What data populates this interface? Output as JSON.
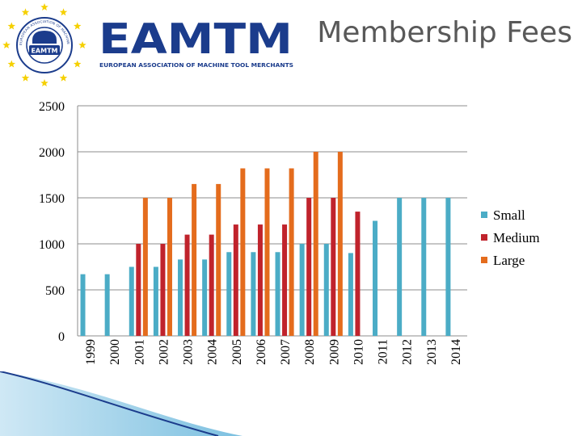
{
  "header": {
    "title": "Membership Fees",
    "logo_text": "EAMTM",
    "logo_subtitle": "EUROPEAN ASSOCIATION OF MACHINE TOOL MERCHANTS",
    "emblem_text": "EUROPEAN ASSOCIATION OF MACHINE TOOL MERCHANTS",
    "emblem_label": "EAMTM"
  },
  "colors": {
    "small": "#4bacc6",
    "medium": "#c0232c",
    "large": "#e46c1d",
    "brand_blue": "#1b3c8c",
    "star": "#f5d000"
  },
  "chart_data": {
    "type": "bar",
    "categories": [
      "1999",
      "2000",
      "2001",
      "2002",
      "2003",
      "2004",
      "2005",
      "2006",
      "2007",
      "2008",
      "2009",
      "2010",
      "2011",
      "2012",
      "2013",
      "2014"
    ],
    "series": [
      {
        "name": "Small",
        "values": [
          670,
          670,
          750,
          750,
          830,
          830,
          910,
          910,
          910,
          1000,
          1000,
          900,
          1250,
          1500,
          1500,
          1500
        ]
      },
      {
        "name": "Medium",
        "values": [
          null,
          null,
          1000,
          1000,
          1100,
          1100,
          1210,
          1210,
          1210,
          1500,
          1500,
          1350,
          null,
          null,
          null,
          null
        ]
      },
      {
        "name": "Large",
        "values": [
          null,
          null,
          1500,
          1500,
          1650,
          1650,
          1820,
          1820,
          1820,
          2000,
          2000,
          null,
          null,
          null,
          null,
          null
        ]
      }
    ],
    "yticks": [
      0,
      500,
      1000,
      1500,
      2000,
      2500
    ],
    "ylim": [
      0,
      2500
    ],
    "grid": true,
    "legend": "right",
    "title": "",
    "xlabel": "",
    "ylabel": ""
  }
}
